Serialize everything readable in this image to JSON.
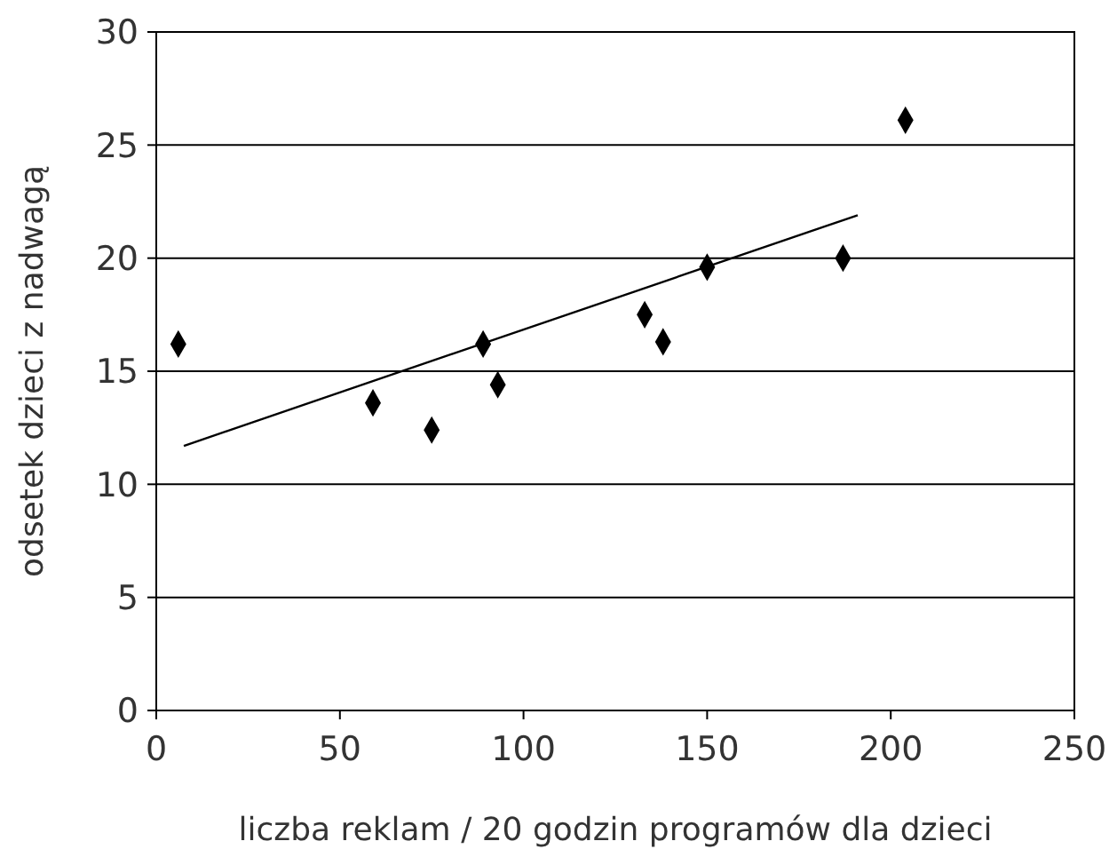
{
  "chart_data": {
    "type": "scatter",
    "xlabel": "liczba reklam / 20 godzin programów dla dzieci",
    "ylabel": "odsetek dzieci z nadwagą",
    "xlim": [
      0,
      250
    ],
    "xticks": [
      0,
      50,
      100,
      150,
      200,
      250
    ],
    "ylim": [
      0,
      30
    ],
    "yticks": [
      0,
      5,
      10,
      15,
      20,
      25,
      30
    ],
    "grid": "y",
    "marker": "diamond",
    "series": [
      {
        "color": "#000000",
        "x": [
          6,
          59,
          75,
          89,
          93,
          133,
          138,
          150,
          187,
          204
        ],
        "values": [
          16.2,
          13.6,
          12.4,
          16.2,
          14.4,
          17.5,
          16.3,
          19.6,
          20.0,
          26.1
        ]
      },
      {
        "type": "line",
        "color": "#000000",
        "line_style": "solid",
        "marker": "none",
        "x": [
          7.5,
          191
        ],
        "values": [
          11.7,
          21.9
        ]
      }
    ]
  }
}
